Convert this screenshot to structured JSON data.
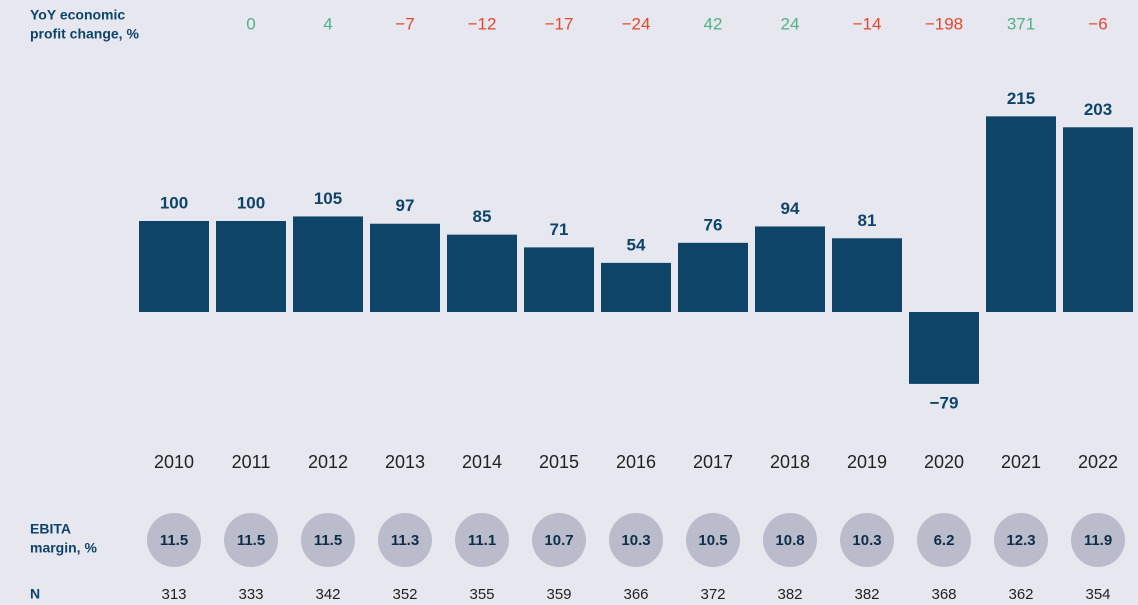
{
  "chart_data": {
    "type": "bar",
    "categories": [
      "2010",
      "2011",
      "2012",
      "2013",
      "2014",
      "2015",
      "2016",
      "2017",
      "2018",
      "2019",
      "2020",
      "2021",
      "2022"
    ],
    "values": [
      100,
      100,
      105,
      97,
      85,
      71,
      54,
      76,
      94,
      81,
      -79,
      215,
      203
    ],
    "value_labels": [
      "100",
      "100",
      "105",
      "97",
      "85",
      "71",
      "54",
      "76",
      "94",
      "81",
      "−79",
      "215",
      "203"
    ],
    "color": "#0e4468",
    "ylim": [
      -100,
      250
    ],
    "yoy": {
      "label": [
        "YoY economic",
        "profit change, %"
      ],
      "values": [
        0,
        4,
        -7,
        -12,
        -17,
        -24,
        42,
        24,
        -14,
        -198,
        371,
        -6
      ],
      "value_labels": [
        "0",
        "4",
        "−7",
        "−12",
        "−17",
        "−24",
        "42",
        "24",
        "−14",
        "−198",
        "371",
        "−6"
      ],
      "positive_color": "#4fb283",
      "negative_color": "#e2472c"
    },
    "ebita_margin": {
      "label": [
        "EBITA",
        "margin, %"
      ],
      "values": [
        11.5,
        11.5,
        11.5,
        11.3,
        11.1,
        10.7,
        10.3,
        10.5,
        10.8,
        10.3,
        6.2,
        12.3,
        11.9
      ],
      "color": "#babccb"
    },
    "n": {
      "label": "N",
      "values": [
        313,
        333,
        342,
        352,
        355,
        359,
        366,
        372,
        382,
        382,
        368,
        362,
        354
      ]
    }
  }
}
